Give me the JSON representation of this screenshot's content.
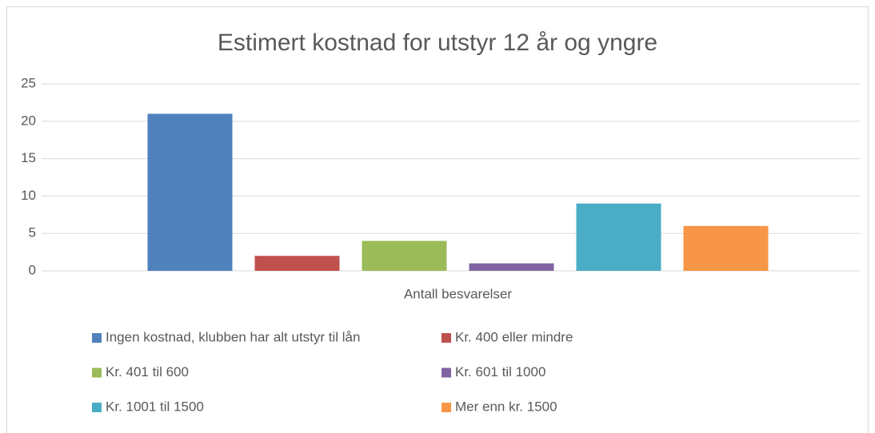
{
  "chart_data": {
    "type": "bar",
    "title": "Estimert kostnad for utstyr 12 år og yngre",
    "categories": [
      "Antall besvarelser"
    ],
    "series": [
      {
        "name": "Ingen kostnad, klubben har alt utstyr til lån",
        "color": "#4f81bd",
        "values": [
          21
        ]
      },
      {
        "name": "Kr. 400 eller mindre",
        "color": "#c0504d",
        "values": [
          2
        ]
      },
      {
        "name": "Kr. 401 til 600",
        "color": "#9bbb59",
        "values": [
          4
        ]
      },
      {
        "name": "Kr. 601 til 1000",
        "color": "#8064a2",
        "values": [
          1
        ]
      },
      {
        "name": "Kr. 1001 til 1500",
        "color": "#4bacc6",
        "values": [
          9
        ]
      },
      {
        "name": "Mer enn kr. 1500",
        "color": "#f79646",
        "values": [
          6
        ]
      }
    ],
    "ylim": [
      0,
      25
    ],
    "yticks": [
      0,
      5,
      10,
      15,
      20,
      25
    ],
    "grid": true,
    "legend": "bottom"
  }
}
